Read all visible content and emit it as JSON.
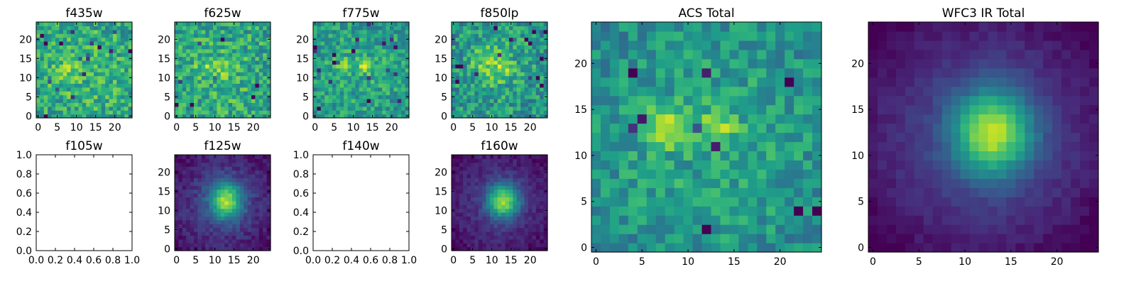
{
  "figure": {
    "background": "#ffffff",
    "frame_color": "#000000"
  },
  "colormap": {
    "name": "viridis"
  },
  "chart_data": [
    {
      "type": "heatmap",
      "title": "f435w",
      "xlim": [
        -0.5,
        24.5
      ],
      "ylim": [
        -0.5,
        24.5
      ],
      "xticks": [
        "0",
        "5",
        "10",
        "15",
        "20"
      ],
      "yticks": [
        "0",
        "5",
        "10",
        "15",
        "20"
      ],
      "grid_size": 25,
      "has_image": true,
      "source": {
        "peaks": [
          {
            "x": 8,
            "y": 12,
            "amp": 0.15,
            "sx": 2,
            "sy": 2
          }
        ],
        "base": 0.66,
        "noise": 0.2,
        "falloff": 0.05
      }
    },
    {
      "type": "heatmap",
      "title": "f625w",
      "xlim": [
        -0.5,
        24.5
      ],
      "ylim": [
        -0.5,
        24.5
      ],
      "xticks": [
        "0",
        "5",
        "10",
        "15",
        "20"
      ],
      "yticks": [
        "0",
        "5",
        "10",
        "15",
        "20"
      ],
      "grid_size": 25,
      "has_image": true,
      "source": {
        "peaks": [
          {
            "x": 8,
            "y": 12.5,
            "amp": 0.2,
            "sx": 2,
            "sy": 1.5
          },
          {
            "x": 13,
            "y": 12.5,
            "amp": 0.15,
            "sx": 1.8,
            "sy": 1.5
          }
        ],
        "base": 0.64,
        "noise": 0.2,
        "falloff": 0.05
      }
    },
    {
      "type": "heatmap",
      "title": "f775w",
      "xlim": [
        -0.5,
        24.5
      ],
      "ylim": [
        -0.5,
        24.5
      ],
      "xticks": [
        "0",
        "5",
        "10",
        "15",
        "20"
      ],
      "yticks": [
        "0",
        "5",
        "10",
        "15",
        "20"
      ],
      "grid_size": 25,
      "has_image": true,
      "source": {
        "peaks": [
          {
            "x": 7.5,
            "y": 13,
            "amp": 0.3,
            "sx": 1.6,
            "sy": 1.2
          },
          {
            "x": 13,
            "y": 13,
            "amp": 0.25,
            "sx": 1.4,
            "sy": 1.2
          }
        ],
        "base": 0.6,
        "noise": 0.17,
        "falloff": 0.05
      }
    },
    {
      "type": "heatmap",
      "title": "f850lp",
      "xlim": [
        -0.5,
        24.5
      ],
      "ylim": [
        -0.5,
        24.5
      ],
      "xticks": [
        "0",
        "5",
        "10",
        "15",
        "20"
      ],
      "yticks": [
        "0",
        "5",
        "10",
        "15",
        "20"
      ],
      "grid_size": 25,
      "has_image": true,
      "source": {
        "peaks": [
          {
            "x": 9,
            "y": 14,
            "amp": 0.2,
            "sx": 3,
            "sy": 3
          },
          {
            "x": 13,
            "y": 12,
            "amp": 0.2,
            "sx": 2,
            "sy": 2
          }
        ],
        "base": 0.58,
        "noise": 0.2,
        "falloff": 0.05
      }
    },
    {
      "type": "heatmap",
      "title": "f105w",
      "xlim": [
        0.0,
        1.0
      ],
      "ylim": [
        0.0,
        1.0
      ],
      "xticks": [
        "0.0",
        "0.2",
        "0.4",
        "0.6",
        "0.8",
        "1.0"
      ],
      "yticks": [
        "0.0",
        "0.2",
        "0.4",
        "0.6",
        "0.8",
        "1.0"
      ],
      "has_image": false
    },
    {
      "type": "heatmap",
      "title": "f125w",
      "xlim": [
        -0.5,
        24.5
      ],
      "ylim": [
        -0.5,
        24.5
      ],
      "xticks": [
        "0",
        "5",
        "10",
        "15",
        "20"
      ],
      "yticks": [
        "0",
        "5",
        "10",
        "15",
        "20"
      ],
      "grid_size": 25,
      "has_image": true,
      "source": {
        "peaks": [
          {
            "x": 13,
            "y": 12.5,
            "amp": 0.7,
            "sx": 3,
            "sy": 3.3
          }
        ],
        "base": 0.18,
        "noise": 0.07,
        "falloff": 0.08
      }
    },
    {
      "type": "heatmap",
      "title": "f140w",
      "xlim": [
        0.0,
        1.0
      ],
      "ylim": [
        0.0,
        1.0
      ],
      "xticks": [
        "0.0",
        "0.2",
        "0.4",
        "0.6",
        "0.8",
        "1.0"
      ],
      "yticks": [
        "0.0",
        "0.2",
        "0.4",
        "0.6",
        "0.8",
        "1.0"
      ],
      "has_image": false
    },
    {
      "type": "heatmap",
      "title": "f160w",
      "xlim": [
        -0.5,
        24.5
      ],
      "ylim": [
        -0.5,
        24.5
      ],
      "xticks": [
        "0",
        "5",
        "10",
        "15",
        "20"
      ],
      "yticks": [
        "0",
        "5",
        "10",
        "15",
        "20"
      ],
      "grid_size": 25,
      "has_image": true,
      "source": {
        "peaks": [
          {
            "x": 13,
            "y": 12.5,
            "amp": 0.72,
            "sx": 2.8,
            "sy": 3
          }
        ],
        "base": 0.16,
        "noise": 0.06,
        "falloff": 0.08
      }
    },
    {
      "type": "heatmap",
      "title": "ACS Total",
      "xlim": [
        -0.5,
        24.5
      ],
      "ylim": [
        -0.5,
        24.5
      ],
      "xticks": [
        "0",
        "5",
        "10",
        "15",
        "20"
      ],
      "yticks": [
        "0",
        "5",
        "10",
        "15",
        "20"
      ],
      "grid_size": 25,
      "has_image": true,
      "source": {
        "peaks": [
          {
            "x": 7.5,
            "y": 13,
            "amp": 0.32,
            "sx": 1.7,
            "sy": 1.4
          },
          {
            "x": 13,
            "y": 13,
            "amp": 0.28,
            "sx": 1.5,
            "sy": 1.3
          }
        ],
        "base": 0.58,
        "noise": 0.15,
        "falloff": 0.06
      }
    },
    {
      "type": "heatmap",
      "title": "WFC3 IR Total",
      "xlim": [
        -0.5,
        24.5
      ],
      "ylim": [
        -0.5,
        24.5
      ],
      "xticks": [
        "0",
        "5",
        "10",
        "15",
        "20"
      ],
      "yticks": [
        "0",
        "5",
        "10",
        "15",
        "20"
      ],
      "grid_size": 25,
      "has_image": true,
      "source": {
        "peaks": [
          {
            "x": 13,
            "y": 12.5,
            "amp": 0.72,
            "sx": 3,
            "sy": 3.2
          }
        ],
        "base": 0.2,
        "noise": 0.035,
        "falloff": 0.12
      }
    }
  ]
}
